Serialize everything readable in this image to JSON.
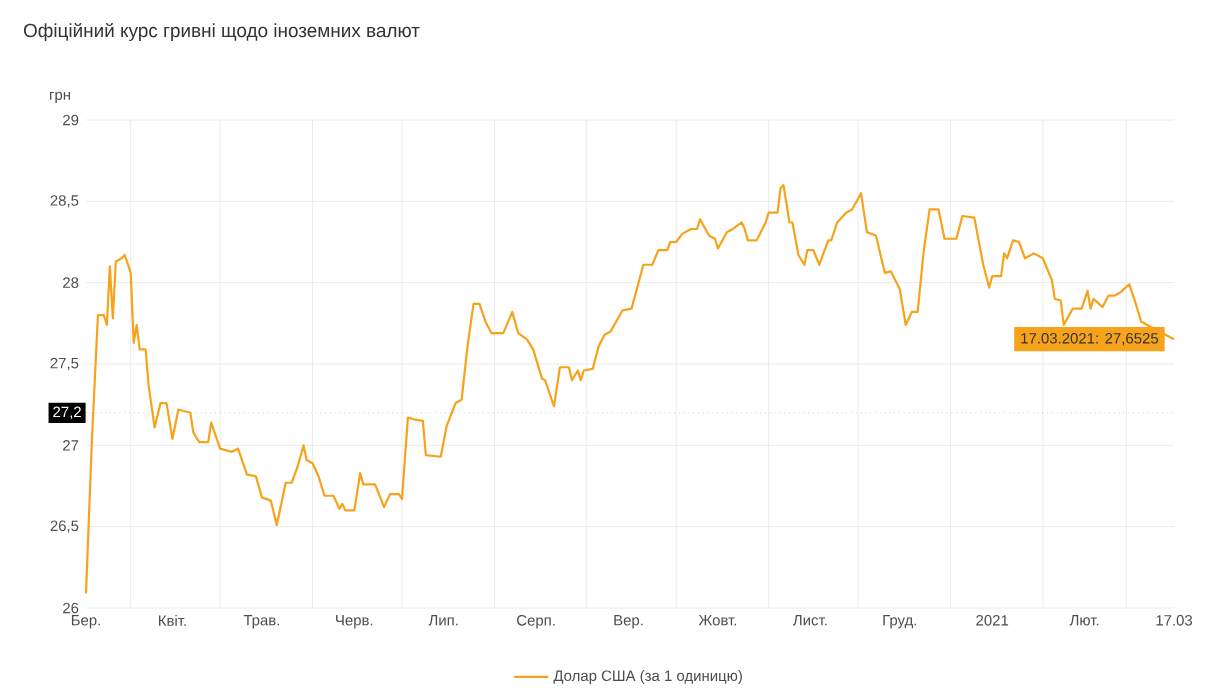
{
  "chart_data": {
    "type": "line",
    "title": "Офіційний курс гривні щодо іноземних валют",
    "ylabel": "грн",
    "xlim": [
      "2020-03-17",
      "2021-03-17"
    ],
    "xticks": [
      {
        "value": "2020-03-17",
        "label": "Бер."
      },
      {
        "value": "2020-04-01",
        "label": null
      },
      {
        "value": "2020-04-15",
        "label": "Квіт."
      },
      {
        "value": "2020-05-01",
        "label": null
      },
      {
        "value": "2020-05-15",
        "label": "Трав."
      },
      {
        "value": "2020-06-01",
        "label": null
      },
      {
        "value": "2020-06-15",
        "label": "Черв."
      },
      {
        "value": "2020-07-01",
        "label": null
      },
      {
        "value": "2020-07-15",
        "label": "Лип."
      },
      {
        "value": "2020-08-01",
        "label": null
      },
      {
        "value": "2020-08-15",
        "label": "Серп."
      },
      {
        "value": "2020-09-01",
        "label": null
      },
      {
        "value": "2020-09-15",
        "label": "Вер."
      },
      {
        "value": "2020-10-01",
        "label": null
      },
      {
        "value": "2020-10-15",
        "label": "Жовт."
      },
      {
        "value": "2020-11-01",
        "label": null
      },
      {
        "value": "2020-11-15",
        "label": "Лист."
      },
      {
        "value": "2020-12-01",
        "label": null
      },
      {
        "value": "2020-12-15",
        "label": "Груд."
      },
      {
        "value": "2021-01-01",
        "label": null
      },
      {
        "value": "2021-01-15",
        "label": "2021"
      },
      {
        "value": "2021-02-01",
        "label": null
      },
      {
        "value": "2021-02-15",
        "label": "Лют."
      },
      {
        "value": "2021-03-01",
        "label": null
      },
      {
        "value": "2021-03-17",
        "label": "17.03"
      }
    ],
    "ylim": [
      26,
      29
    ],
    "yticks": [
      26,
      {
        "value": 26.5,
        "label": "26,5"
      },
      27,
      {
        "value": 27.5,
        "label": "27,5"
      },
      28,
      {
        "value": 28.5,
        "label": "28,5"
      },
      29
    ],
    "grid": true,
    "legend": "bottom",
    "marker": "none",
    "line_style": "solid",
    "ref_lines": [
      {
        "axis": "y",
        "value": 27.2,
        "label": "27,2",
        "line_style": "dotted",
        "color": "#b0b0b0"
      }
    ],
    "annotations": [
      {
        "text": "17.03.2021: 27,6525",
        "x": "2021-03-17",
        "y": 27.6525
      }
    ],
    "series": [
      {
        "name": "Долар США (за 1 одиницю)",
        "color": "#f7a21b",
        "x": [
          "2020-03-17",
          "2020-03-19",
          "2020-03-21",
          "2020-03-23",
          "2020-03-24",
          "2020-03-25",
          "2020-03-26",
          "2020-03-27",
          "2020-03-29",
          "2020-03-30",
          "2020-04-01",
          "2020-04-02",
          "2020-04-03",
          "2020-04-04",
          "2020-04-06",
          "2020-04-07",
          "2020-04-09",
          "2020-04-11",
          "2020-04-13",
          "2020-04-15",
          "2020-04-17",
          "2020-04-21",
          "2020-04-22",
          "2020-04-24",
          "2020-04-27",
          "2020-04-28",
          "2020-05-01",
          "2020-05-05",
          "2020-05-07",
          "2020-05-10",
          "2020-05-13",
          "2020-05-15",
          "2020-05-18",
          "2020-05-20",
          "2020-05-23",
          "2020-05-25",
          "2020-05-27",
          "2020-05-29",
          "2020-05-30",
          "2020-06-01",
          "2020-06-03",
          "2020-06-05",
          "2020-06-08",
          "2020-06-10",
          "2020-06-11",
          "2020-06-12",
          "2020-06-15",
          "2020-06-17",
          "2020-06-18",
          "2020-06-22",
          "2020-06-25",
          "2020-06-27",
          "2020-06-30",
          "2020-07-01",
          "2020-07-03",
          "2020-07-05",
          "2020-07-08",
          "2020-07-09",
          "2020-07-14",
          "2020-07-16",
          "2020-07-19",
          "2020-07-21",
          "2020-07-23",
          "2020-07-25",
          "2020-07-27",
          "2020-07-29",
          "2020-07-31",
          "2020-08-04",
          "2020-08-07",
          "2020-08-09",
          "2020-08-12",
          "2020-08-14",
          "2020-08-17",
          "2020-08-18",
          "2020-08-21",
          "2020-08-23",
          "2020-08-26",
          "2020-08-27",
          "2020-08-29",
          "2020-08-30",
          "2020-08-31",
          "2020-09-03",
          "2020-09-05",
          "2020-09-07",
          "2020-09-09",
          "2020-09-13",
          "2020-09-16",
          "2020-09-20",
          "2020-09-23",
          "2020-09-25",
          "2020-09-28",
          "2020-09-29",
          "2020-10-01",
          "2020-10-03",
          "2020-10-06",
          "2020-10-08",
          "2020-10-09",
          "2020-10-12",
          "2020-10-14",
          "2020-10-15",
          "2020-10-18",
          "2020-10-20",
          "2020-10-23",
          "2020-10-24",
          "2020-10-25",
          "2020-10-28",
          "2020-10-31",
          "2020-11-01",
          "2020-11-04",
          "2020-11-05",
          "2020-11-06",
          "2020-11-08",
          "2020-11-09",
          "2020-11-11",
          "2020-11-13",
          "2020-11-14",
          "2020-11-16",
          "2020-11-18",
          "2020-11-21",
          "2020-11-22",
          "2020-11-24",
          "2020-11-27",
          "2020-11-29",
          "2020-12-02",
          "2020-12-04",
          "2020-12-07",
          "2020-12-10",
          "2020-12-12",
          "2020-12-15",
          "2020-12-17",
          "2020-12-19",
          "2020-12-21",
          "2020-12-23",
          "2020-12-25",
          "2020-12-28",
          "2020-12-30",
          "2021-01-03",
          "2021-01-05",
          "2021-01-09",
          "2021-01-12",
          "2021-01-14",
          "2021-01-15",
          "2021-01-18",
          "2021-01-19",
          "2021-01-20",
          "2021-01-22",
          "2021-01-24",
          "2021-01-26",
          "2021-01-29",
          "2021-02-01",
          "2021-02-03",
          "2021-02-04",
          "2021-02-05",
          "2021-02-07",
          "2021-02-08",
          "2021-02-11",
          "2021-02-14",
          "2021-02-16",
          "2021-02-17",
          "2021-02-18",
          "2021-02-21",
          "2021-02-23",
          "2021-02-25",
          "2021-02-27",
          "2021-03-02",
          "2021-03-04",
          "2021-03-06",
          "2021-03-08",
          "2021-03-10",
          "2021-03-17"
        ],
        "values": [
          26.09,
          27.04,
          27.8,
          27.8,
          27.74,
          28.1,
          27.78,
          28.13,
          28.15,
          28.17,
          28.06,
          27.63,
          27.74,
          27.59,
          27.59,
          27.37,
          27.11,
          27.26,
          27.26,
          27.04,
          27.22,
          27.2,
          27.08,
          27.02,
          27.02,
          27.14,
          26.98,
          26.96,
          26.98,
          26.82,
          26.81,
          26.68,
          26.66,
          26.51,
          26.77,
          26.77,
          26.87,
          27.0,
          26.91,
          26.89,
          26.81,
          26.69,
          26.69,
          26.61,
          26.64,
          26.6,
          26.6,
          26.83,
          26.76,
          26.76,
          26.62,
          26.7,
          26.7,
          26.67,
          27.17,
          27.16,
          27.15,
          26.94,
          26.93,
          27.12,
          27.26,
          27.28,
          27.61,
          27.87,
          27.87,
          27.76,
          27.69,
          27.69,
          27.82,
          27.69,
          27.65,
          27.59,
          27.41,
          27.4,
          27.24,
          27.48,
          27.48,
          27.4,
          27.46,
          27.4,
          27.46,
          27.47,
          27.61,
          27.68,
          27.7,
          27.83,
          27.84,
          28.11,
          28.11,
          28.2,
          28.2,
          28.25,
          28.25,
          28.3,
          28.33,
          28.33,
          28.39,
          28.29,
          28.27,
          28.21,
          28.31,
          28.33,
          28.37,
          28.33,
          28.26,
          28.26,
          28.37,
          28.43,
          28.43,
          28.58,
          28.6,
          28.37,
          28.37,
          28.17,
          28.11,
          28.2,
          28.2,
          28.11,
          28.26,
          28.26,
          28.37,
          28.43,
          28.45,
          28.55,
          28.31,
          28.29,
          28.06,
          28.07,
          27.96,
          27.74,
          27.82,
          27.82,
          28.19,
          28.45,
          28.45,
          28.27,
          28.27,
          28.41,
          28.4,
          28.11,
          27.97,
          28.04,
          28.04,
          28.18,
          28.15,
          28.26,
          28.25,
          28.15,
          28.18,
          28.15,
          28.06,
          28.02,
          27.9,
          27.89,
          27.74,
          27.84,
          27.84,
          27.95,
          27.84,
          27.9,
          27.85,
          27.92,
          27.92,
          27.94,
          27.99,
          27.88,
          27.76,
          27.74,
          27.72,
          27.6525
        ]
      }
    ]
  }
}
